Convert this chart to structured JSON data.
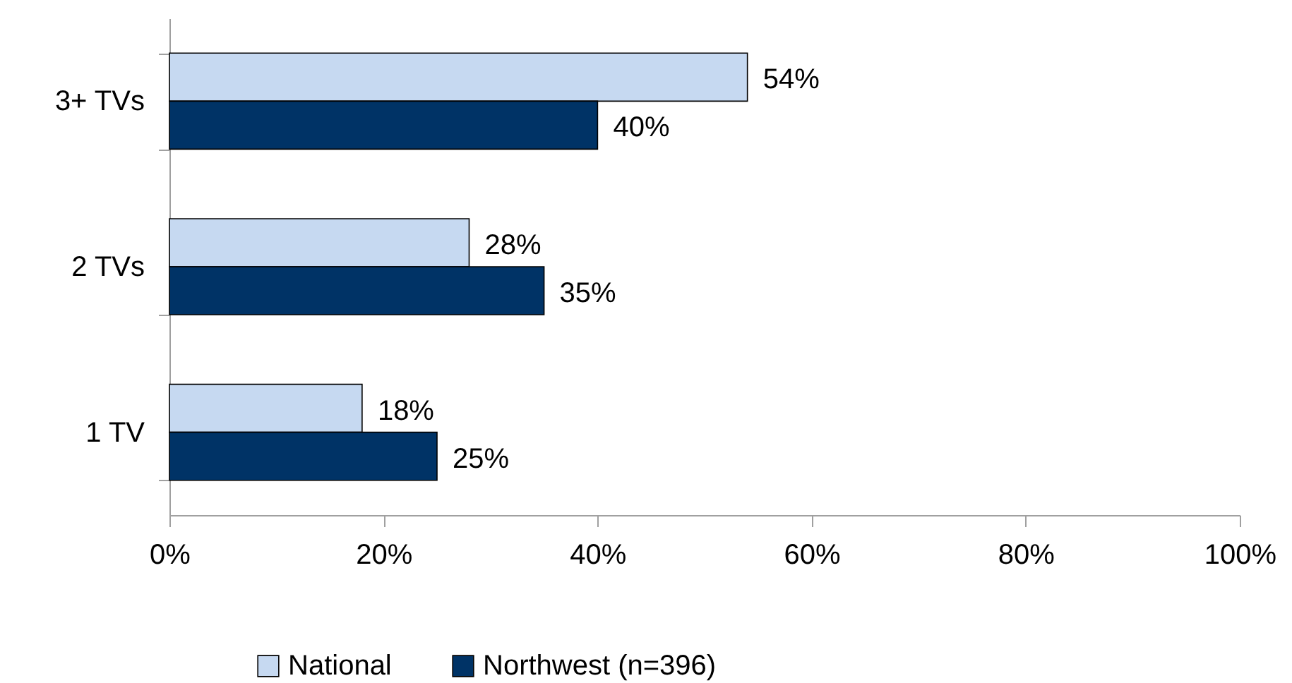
{
  "chart_data": {
    "type": "bar",
    "orientation": "horizontal",
    "categories": [
      "3+ TVs",
      "2 TVs",
      "1 TV"
    ],
    "series": [
      {
        "name": "National",
        "color": "#c6d9f1",
        "values": [
          54,
          28,
          18
        ],
        "value_labels": [
          "54%",
          "28%",
          "18%"
        ]
      },
      {
        "name": "Northwest (n=396)",
        "color": "#003366",
        "values": [
          40,
          35,
          25
        ],
        "value_labels": [
          "40%",
          "35%",
          "25%"
        ]
      }
    ],
    "xlim": [
      0,
      100
    ],
    "xticks": [
      {
        "value": 0,
        "label": "0%"
      },
      {
        "value": 20,
        "label": "20%"
      },
      {
        "value": 40,
        "label": "40%"
      },
      {
        "value": 60,
        "label": "60%"
      },
      {
        "value": 80,
        "label": "80%"
      },
      {
        "value": 100,
        "label": "100%"
      }
    ],
    "legend": "bottom"
  }
}
